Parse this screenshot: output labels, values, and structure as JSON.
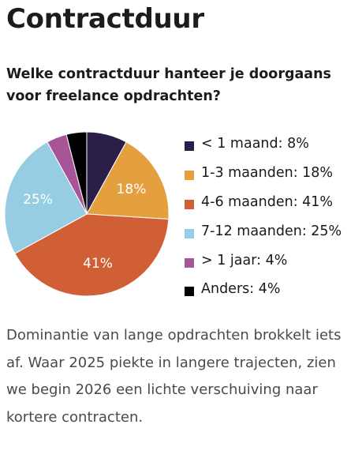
{
  "page": {
    "title": "Contractduur",
    "subtitle": "Welke contractduur hanteer je doorgaans voor freelance opdrachten?",
    "body": "Dominantie van lange opdrachten brokkelt iets af. Waar 2025 piekte in langere trajecten, zien we begin 2026 een lichte verschuiving naar kortere contracten."
  },
  "chart_data": {
    "type": "pie",
    "legend_position": "right",
    "slices": [
      {
        "legend": "< 1 maand: 8%",
        "value": 8,
        "color": "#2b1f4a",
        "label": ""
      },
      {
        "legend": "1-3 maanden: 18%",
        "value": 18,
        "color": "#e4a03f",
        "label": "18%"
      },
      {
        "legend": "4-6 maanden: 41%",
        "value": 41,
        "color": "#d05f35",
        "label": "41%"
      },
      {
        "legend": "7-12 maanden: 25%",
        "value": 25,
        "color": "#96cde3",
        "label": "25%"
      },
      {
        "legend": "> 1 jaar: 4%",
        "value": 4,
        "color": "#a85597",
        "label": ""
      },
      {
        "legend": "Anders: 4%",
        "value": 4,
        "color": "#000000",
        "label": ""
      }
    ]
  }
}
